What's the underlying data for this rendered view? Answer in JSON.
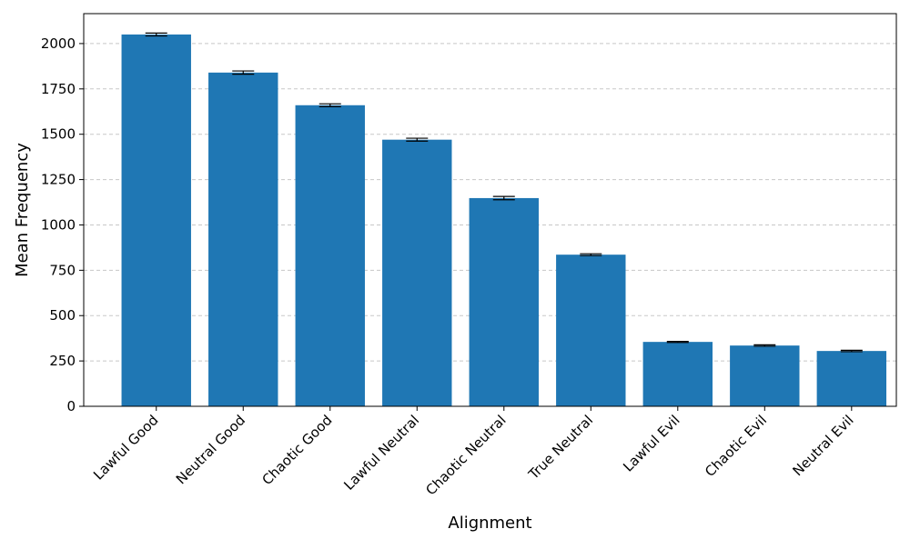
{
  "chart_data": {
    "type": "bar",
    "title": "",
    "xlabel": "Alignment",
    "ylabel": "Mean Frequency",
    "categories": [
      "Lawful Good",
      "Neutral Good",
      "Chaotic Good",
      "Lawful Neutral",
      "Chaotic Neutral",
      "True Neutral",
      "Lawful Evil",
      "Chaotic Evil",
      "Neutral Evil"
    ],
    "values": [
      2050,
      1840,
      1660,
      1470,
      1148,
      836,
      355,
      335,
      305
    ],
    "errors": [
      8,
      9,
      8,
      8,
      9,
      5,
      3,
      4,
      4
    ],
    "ylim": [
      0,
      2165
    ],
    "yticks": [
      0,
      250,
      500,
      750,
      1000,
      1250,
      1500,
      1750,
      2000
    ],
    "grid": "y-dashed",
    "bar_color": "#1f77b4",
    "error_color": "#000000",
    "grid_color": "#c8c8c8"
  }
}
